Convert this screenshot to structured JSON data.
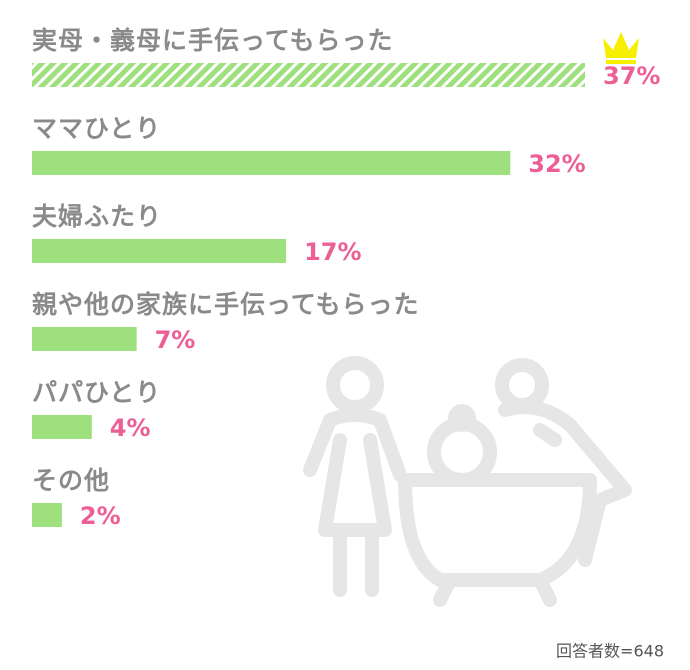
{
  "chart_data": {
    "type": "bar",
    "orientation": "horizontal",
    "categories": [
      "実母・義母に手伝ってもらった",
      "ママひとり",
      "夫婦ふたり",
      "親や他の家族に手伝ってもらった",
      "パパひとり",
      "その他"
    ],
    "values": [
      37,
      32,
      17,
      7,
      4,
      2
    ],
    "value_labels": [
      "37%",
      "32%",
      "17%",
      "7%",
      "4%",
      "2%"
    ],
    "color": "#9ee07d",
    "value_label_color": "#ec5f95",
    "note": "回答者数=648"
  }
}
